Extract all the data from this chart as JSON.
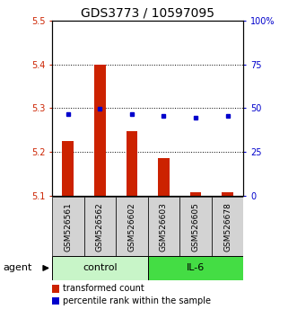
{
  "title": "GDS3773 / 10597095",
  "samples": [
    "GSM526561",
    "GSM526562",
    "GSM526602",
    "GSM526603",
    "GSM526605",
    "GSM526678"
  ],
  "red_values": [
    5.225,
    5.4,
    5.248,
    5.186,
    5.107,
    5.108
  ],
  "blue_values": [
    46.5,
    49.5,
    46.5,
    45.5,
    44.5,
    45.5
  ],
  "ylim_left": [
    5.1,
    5.5
  ],
  "ylim_right": [
    0,
    100
  ],
  "yticks_left": [
    5.1,
    5.2,
    5.3,
    5.4,
    5.5
  ],
  "yticks_right": [
    0,
    25,
    50,
    75,
    100
  ],
  "ytick_labels_right": [
    "0",
    "25",
    "50",
    "75",
    "100%"
  ],
  "bar_color": "#cc2200",
  "dot_color": "#0000cc",
  "bar_bottom": 5.1,
  "agent_label": "agent",
  "group_configs": [
    {
      "indices": [
        0,
        1,
        2
      ],
      "label": "control",
      "color": "#c8f5c8"
    },
    {
      "indices": [
        3,
        4,
        5
      ],
      "label": "IL-6",
      "color": "#44dd44"
    }
  ],
  "legend_items": [
    {
      "color": "#cc2200",
      "label": "transformed count"
    },
    {
      "color": "#0000cc",
      "label": "percentile rank within the sample"
    }
  ],
  "title_fontsize": 10,
  "tick_fontsize": 7,
  "sample_fontsize": 6.5,
  "agent_fontsize": 8,
  "group_fontsize": 8,
  "legend_fontsize": 7
}
